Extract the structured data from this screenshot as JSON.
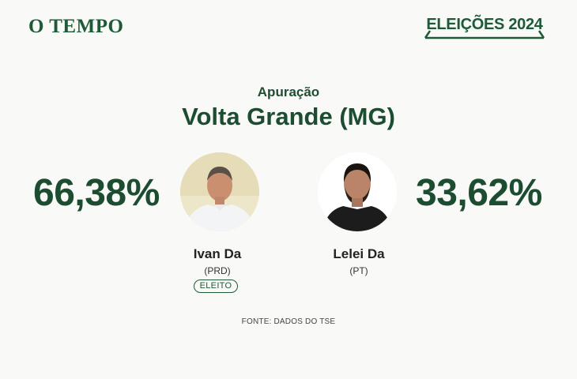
{
  "header": {
    "logo": "O TEMPO",
    "badge": "ELEIÇÕES 2024"
  },
  "main": {
    "subtitle": "Apuração",
    "title": "Volta Grande (MG)"
  },
  "candidates": [
    {
      "percent": "66,38%",
      "name": "Ivan Da",
      "party": "(PRD)",
      "status": "ELEITO",
      "photo_icon": "candidate-photo"
    },
    {
      "percent": "33,62%",
      "name": "Lelei Da",
      "party": "(PT)",
      "photo_icon": "candidate-photo"
    }
  ],
  "footer": {
    "source": "FONTE: DADOS DO TSE"
  },
  "colors": {
    "brand_green": "#1d5a37",
    "text_green": "#1d4d30",
    "background": "#f9f9f7"
  }
}
